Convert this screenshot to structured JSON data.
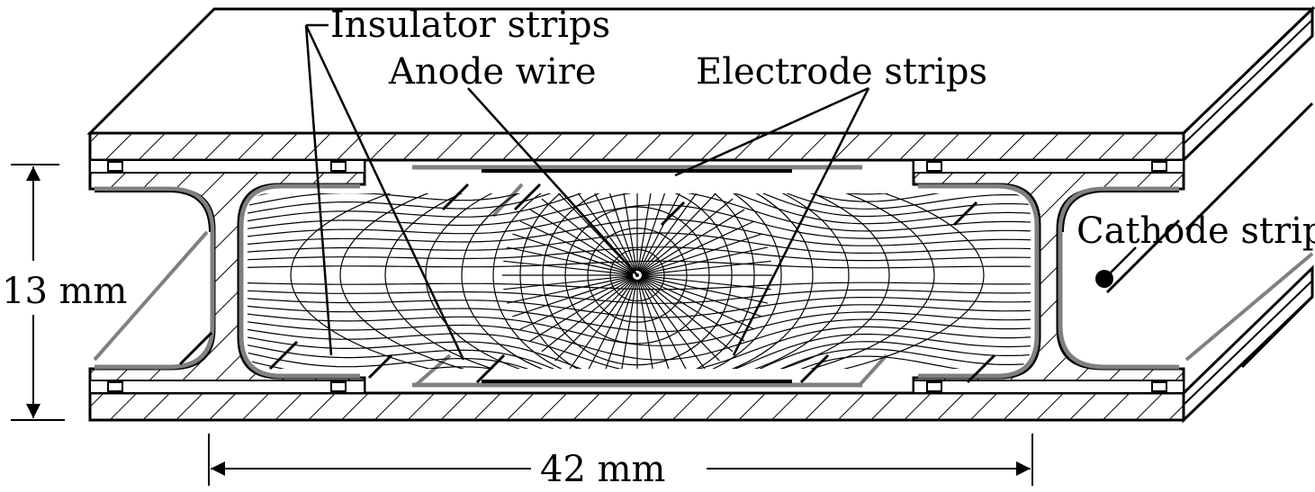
{
  "labels": {
    "insulator_strips": "Insulator strips",
    "anode_wire": "Anode wire",
    "electrode_strips": "Electrode strips",
    "cathode_strip": "Cathode strip",
    "height_dim": "13 mm",
    "width_dim": "42 mm"
  },
  "colors": {
    "ink": "#000000",
    "strip_gray": "#808080",
    "background": "#ffffff"
  }
}
